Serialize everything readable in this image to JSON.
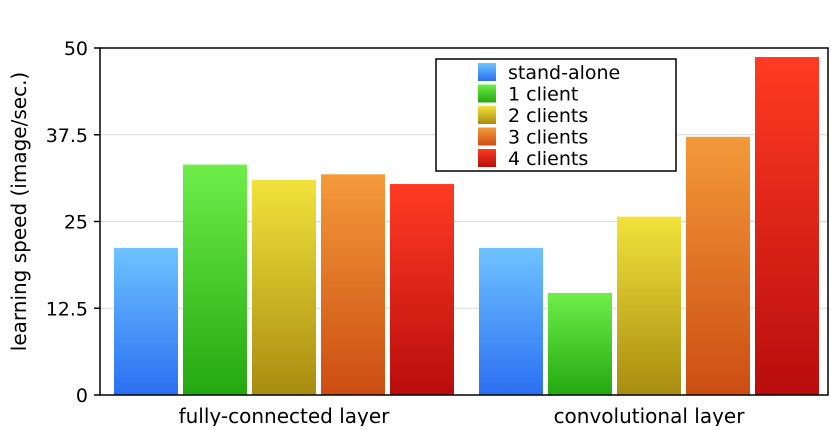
{
  "chart_data": {
    "type": "bar",
    "title": "",
    "xlabel": "",
    "ylabel": "learning speed (image/sec.)",
    "ylim": [
      0,
      50
    ],
    "yticks": [
      0,
      12.5,
      25,
      37.5,
      50
    ],
    "ytick_labels": [
      "0",
      "12.5",
      "25",
      "37.5",
      "50"
    ],
    "grid": "horizontal",
    "legend": "top-right",
    "categories": [
      "fully-connected layer",
      "convolutional layer"
    ],
    "series": [
      {
        "name": "stand-alone",
        "values": [
          21.2,
          21.2
        ],
        "color_top": "#6ec3ff",
        "color_bottom": "#2b6ff2"
      },
      {
        "name": "1 client",
        "values": [
          33.2,
          14.7
        ],
        "color_top": "#6fee4a",
        "color_bottom": "#23a80f"
      },
      {
        "name": "2 clients",
        "values": [
          31.0,
          25.7
        ],
        "color_top": "#f1e33b",
        "color_bottom": "#a98c10"
      },
      {
        "name": "3 clients",
        "values": [
          31.8,
          37.2
        ],
        "color_top": "#f49a3a",
        "color_bottom": "#cc4d12"
      },
      {
        "name": "4 clients",
        "values": [
          30.4,
          48.7
        ],
        "color_top": "#ff3b22",
        "color_bottom": "#b80d0d"
      }
    ]
  }
}
